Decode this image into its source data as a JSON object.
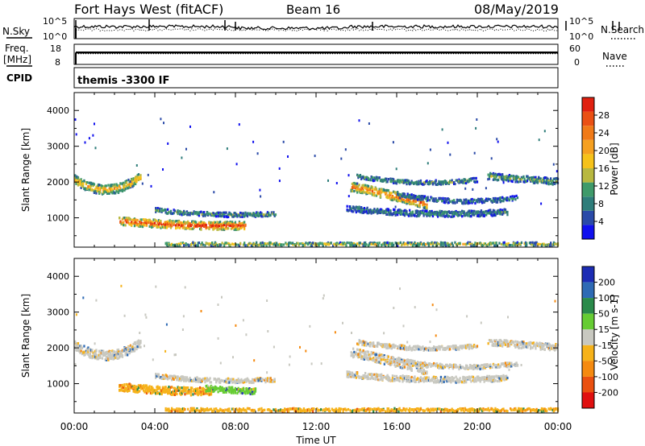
{
  "header": {
    "station": "Fort Hays West (fitACF)",
    "beam": "Beam 16",
    "date": "08/May/2019"
  },
  "left_labels": {
    "nsky": "N.Sky",
    "freq_line1": "Freq.",
    "freq_line2": "[MHz]",
    "cpid": "CPID"
  },
  "right_labels": {
    "nsearch": "N.Search",
    "nave": "Nave"
  },
  "noise_panel": {
    "left_ticks": [
      "10^5",
      "10^0"
    ],
    "right_ticks": [
      "10^5",
      "10^0"
    ]
  },
  "freq_panel": {
    "left_ticks": [
      "18",
      "8"
    ],
    "right_ticks": [
      "60",
      "0"
    ],
    "freq_level_fraction": 0.35
  },
  "cpid_panel": {
    "text": "themis -3300 IF"
  },
  "chart_data": [
    {
      "type": "heatmap",
      "name": "power",
      "xlabel": "Time UT",
      "ylabel": "Slant Range [km]",
      "xlim": [
        0,
        24
      ],
      "ylim": [
        180,
        4500
      ],
      "x_ticks": [
        "00:00",
        "04:00",
        "08:00",
        "12:00",
        "16:00",
        "20:00",
        "00:00"
      ],
      "y_ticks": [
        1000,
        2000,
        3000,
        4000
      ],
      "colorbar": {
        "label": "Power [dB]",
        "ticks": [
          4,
          8,
          12,
          16,
          20,
          24,
          28
        ],
        "colors": [
          "#1010ee",
          "#2a4aa8",
          "#2e7d7a",
          "#3f9a6a",
          "#b8b840",
          "#f6c21a",
          "#f5a020",
          "#f07a18",
          "#ea5014",
          "#e02010"
        ]
      },
      "regions": [
        {
          "t0": 0.0,
          "t1": 3.3,
          "r_start": 2100,
          "r_mid": 1500,
          "r_end": 2200,
          "width": 260,
          "level": 0.55
        },
        {
          "t0": 2.2,
          "t1": 8.5,
          "r_start": 950,
          "r_mid": 780,
          "r_end": 820,
          "width": 220,
          "level": 0.8
        },
        {
          "t0": 4.0,
          "t1": 10.0,
          "r_start": 1250,
          "r_mid": 1050,
          "r_end": 1150,
          "width": 120,
          "level": 0.3
        },
        {
          "t0": 4.5,
          "t1": 24.0,
          "r_start": 300,
          "r_mid": 300,
          "r_end": 300,
          "width": 90,
          "level": 0.45
        },
        {
          "t0": 13.7,
          "t1": 17.5,
          "r_start": 1900,
          "r_mid": 1700,
          "r_end": 1400,
          "width": 250,
          "level": 0.7
        },
        {
          "t0": 13.5,
          "t1": 21.5,
          "r_start": 1300,
          "r_mid": 1050,
          "r_end": 1200,
          "width": 160,
          "level": 0.25
        },
        {
          "t0": 16.0,
          "t1": 22.0,
          "r_start": 1700,
          "r_mid": 1350,
          "r_end": 1600,
          "width": 120,
          "level": 0.25
        },
        {
          "t0": 20.5,
          "t1": 24.0,
          "r_start": 2200,
          "r_mid": 2100,
          "r_end": 2050,
          "width": 180,
          "level": 0.35
        },
        {
          "t0": 14.0,
          "t1": 20.0,
          "r_start": 2200,
          "r_mid": 1900,
          "r_end": 2100,
          "width": 120,
          "level": 0.3
        }
      ]
    },
    {
      "type": "heatmap",
      "name": "velocity",
      "xlabel": "Time UT",
      "ylabel": "Slant Range [km]",
      "xlim": [
        0,
        24
      ],
      "ylim": [
        180,
        4500
      ],
      "x_ticks": [
        "00:00",
        "04:00",
        "08:00",
        "12:00",
        "16:00",
        "20:00",
        "00:00"
      ],
      "y_ticks": [
        1000,
        2000,
        3000,
        4000
      ],
      "colorbar": {
        "label": "Velocity [m s-1]",
        "ticks": [
          "200",
          "100",
          "50",
          "15",
          "-15",
          "-50",
          "-100",
          "-200"
        ],
        "colors": [
          "#1c2cb4",
          "#2e6ab4",
          "#2a8a4a",
          "#66cc33",
          "#c8c8c0",
          "#f6b21a",
          "#f58a10",
          "#ea5010",
          "#e01010"
        ]
      },
      "regions": [
        {
          "t0": 0.0,
          "t1": 3.3,
          "r_start": 2100,
          "r_mid": 1500,
          "r_end": 2200,
          "width": 260,
          "cat": 4
        },
        {
          "t0": 2.2,
          "t1": 6.8,
          "r_start": 950,
          "r_mid": 800,
          "r_end": 820,
          "width": 220,
          "cat": 5
        },
        {
          "t0": 6.5,
          "t1": 9.0,
          "r_start": 900,
          "r_mid": 850,
          "r_end": 820,
          "width": 160,
          "cat": 3
        },
        {
          "t0": 4.0,
          "t1": 10.0,
          "r_start": 1250,
          "r_mid": 1050,
          "r_end": 1150,
          "width": 120,
          "cat": 4
        },
        {
          "t0": 4.5,
          "t1": 24.0,
          "r_start": 300,
          "r_mid": 300,
          "r_end": 300,
          "width": 90,
          "cat": 5
        },
        {
          "t0": 13.7,
          "t1": 17.5,
          "r_start": 1900,
          "r_mid": 1700,
          "r_end": 1400,
          "width": 250,
          "cat": 4
        },
        {
          "t0": 13.5,
          "t1": 21.5,
          "r_start": 1300,
          "r_mid": 1050,
          "r_end": 1200,
          "width": 160,
          "cat": 4
        },
        {
          "t0": 16.0,
          "t1": 22.0,
          "r_start": 1700,
          "r_mid": 1350,
          "r_end": 1600,
          "width": 120,
          "cat": 4
        },
        {
          "t0": 20.5,
          "t1": 24.0,
          "r_start": 2200,
          "r_mid": 2100,
          "r_end": 2050,
          "width": 180,
          "cat": 4
        },
        {
          "t0": 14.0,
          "t1": 20.0,
          "r_start": 2200,
          "r_mid": 1900,
          "r_end": 2100,
          "width": 120,
          "cat": 4
        }
      ]
    }
  ]
}
